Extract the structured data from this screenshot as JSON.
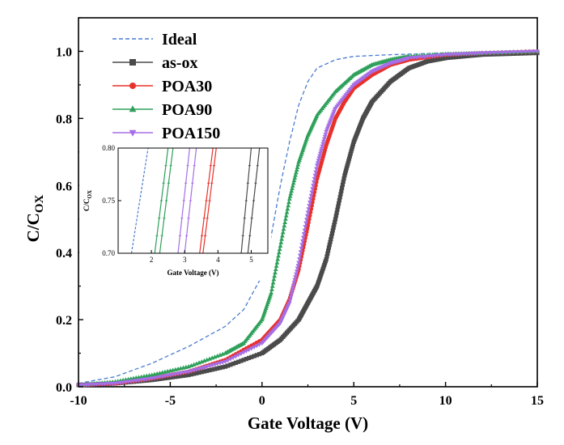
{
  "chart_data": [
    {
      "type": "line",
      "title": "",
      "xlabel": "Gate Voltage (V)",
      "ylabel_main": "C/C",
      "ylabel_sub": "OX",
      "xlim": [
        -10,
        15
      ],
      "ylim": [
        0,
        1.1
      ],
      "xticks": [
        "-10",
        "-5",
        "0",
        "5",
        "10",
        "15"
      ],
      "yticks": [
        "0.0",
        "0.2",
        "0.4",
        "0.6",
        "0.8",
        "1.0"
      ],
      "legend_position": "top-left",
      "series": [
        {
          "name": "Ideal",
          "color": "#4a7bd0",
          "style": "dashed",
          "marker": "none",
          "x": [
            -10,
            -8,
            -6,
            -4,
            -2,
            -1,
            0,
            0.5,
            1,
            1.5,
            2,
            2.5,
            3,
            4,
            5,
            7,
            10,
            15
          ],
          "y": [
            0.01,
            0.03,
            0.07,
            0.12,
            0.18,
            0.23,
            0.33,
            0.45,
            0.6,
            0.73,
            0.84,
            0.91,
            0.95,
            0.975,
            0.985,
            0.99,
            0.995,
            1.0
          ]
        },
        {
          "name": "as-ox",
          "color": "#4a4a4a",
          "style": "solid",
          "marker": "square",
          "x": [
            -10,
            -8,
            -6,
            -4,
            -2,
            0,
            1,
            2,
            2.5,
            3,
            3.5,
            4,
            4.5,
            5,
            5.5,
            6,
            7,
            8,
            9,
            10,
            12,
            15
          ],
          "y": [
            0.005,
            0.01,
            0.02,
            0.035,
            0.06,
            0.1,
            0.14,
            0.2,
            0.25,
            0.3,
            0.38,
            0.5,
            0.63,
            0.73,
            0.8,
            0.85,
            0.91,
            0.95,
            0.97,
            0.98,
            0.99,
            0.995
          ]
        },
        {
          "name": "POA30",
          "color": "#e8312a",
          "style": "solid",
          "marker": "circle",
          "x": [
            -10,
            -8,
            -6,
            -4,
            -2,
            0,
            1,
            1.5,
            2,
            2.5,
            3,
            3.5,
            4,
            4.5,
            5,
            6,
            7,
            8,
            10,
            12,
            15
          ],
          "y": [
            0.005,
            0.01,
            0.025,
            0.045,
            0.08,
            0.14,
            0.2,
            0.26,
            0.35,
            0.48,
            0.62,
            0.72,
            0.8,
            0.85,
            0.89,
            0.93,
            0.96,
            0.975,
            0.99,
            0.995,
            1.0
          ]
        },
        {
          "name": "POA90",
          "color": "#2ea05a",
          "style": "solid",
          "marker": "triangle-up",
          "x": [
            -10,
            -8,
            -6,
            -4,
            -2,
            -1,
            0,
            0.5,
            1,
            1.5,
            2,
            2.5,
            3,
            4,
            5,
            6,
            7,
            8,
            10,
            12,
            15
          ],
          "y": [
            0.005,
            0.015,
            0.035,
            0.06,
            0.1,
            0.13,
            0.2,
            0.28,
            0.42,
            0.56,
            0.67,
            0.75,
            0.81,
            0.88,
            0.93,
            0.96,
            0.975,
            0.985,
            0.992,
            0.995,
            1.0
          ]
        },
        {
          "name": "POA150",
          "color": "#a56ee6",
          "style": "solid",
          "marker": "triangle-down",
          "x": [
            -10,
            -8,
            -6,
            -4,
            -2,
            0,
            1,
            1.5,
            2,
            2.5,
            3,
            3.5,
            4,
            5,
            6,
            7,
            8,
            10,
            12,
            15
          ],
          "y": [
            0.005,
            0.01,
            0.025,
            0.045,
            0.075,
            0.13,
            0.19,
            0.25,
            0.37,
            0.52,
            0.66,
            0.76,
            0.83,
            0.9,
            0.94,
            0.965,
            0.98,
            0.99,
            0.995,
            1.0
          ]
        }
      ]
    },
    {
      "type": "line",
      "title": "",
      "xlabel": "Gate Voltage (V)",
      "ylabel_main": "C/C",
      "ylabel_sub": "OX",
      "xlim": [
        1,
        5.5
      ],
      "ylim": [
        0.7,
        0.8
      ],
      "xticks": [
        "2",
        "3",
        "4",
        "5"
      ],
      "yticks": [
        "0.70",
        "0.75",
        "0.80"
      ],
      "series": [
        {
          "name": "Ideal",
          "color": "#4a7bd0",
          "style": "dashed",
          "x": [
            1.4,
            1.9
          ],
          "y": [
            0.7,
            0.8
          ]
        },
        {
          "name": "POA90 a",
          "color": "#2ea05a",
          "style": "solid",
          "x": [
            2.1,
            2.5
          ],
          "y": [
            0.7,
            0.8
          ]
        },
        {
          "name": "POA90 b",
          "color": "#2ea05a",
          "style": "solid",
          "x": [
            2.25,
            2.65
          ],
          "y": [
            0.7,
            0.8
          ]
        },
        {
          "name": "POA150 a",
          "color": "#a56ee6",
          "style": "solid",
          "x": [
            2.8,
            3.15
          ],
          "y": [
            0.7,
            0.8
          ]
        },
        {
          "name": "POA150 b",
          "color": "#a56ee6",
          "style": "solid",
          "x": [
            3.0,
            3.35
          ],
          "y": [
            0.7,
            0.8
          ]
        },
        {
          "name": "POA30 a",
          "color": "#e8312a",
          "style": "solid",
          "x": [
            3.45,
            3.85
          ],
          "y": [
            0.7,
            0.8
          ]
        },
        {
          "name": "POA30 b",
          "color": "#e8312a",
          "style": "solid",
          "x": [
            3.55,
            3.95
          ],
          "y": [
            0.7,
            0.8
          ]
        },
        {
          "name": "as-ox a",
          "color": "#4a4a4a",
          "style": "solid",
          "x": [
            4.7,
            5.0
          ],
          "y": [
            0.7,
            0.8
          ]
        },
        {
          "name": "as-ox b",
          "color": "#4a4a4a",
          "style": "solid",
          "x": [
            4.9,
            5.25
          ],
          "y": [
            0.7,
            0.8
          ]
        }
      ]
    }
  ]
}
